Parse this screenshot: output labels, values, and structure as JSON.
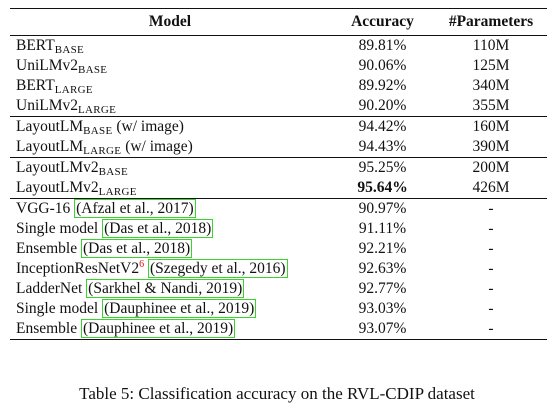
{
  "table": {
    "headers": {
      "model": "Model",
      "accuracy": "Accuracy",
      "params": "#Parameters"
    },
    "groups": [
      [
        {
          "name": "BERT",
          "sub": "BASE",
          "suffix": "",
          "accuracy": "89.81%",
          "params": "110M"
        },
        {
          "name": "UniLMv2",
          "sub": "BASE",
          "suffix": "",
          "accuracy": "90.06%",
          "params": "125M"
        },
        {
          "name": "BERT",
          "sub": "LARGE",
          "suffix": "",
          "accuracy": "89.92%",
          "params": "340M"
        },
        {
          "name": "UniLMv2",
          "sub": "LARGE",
          "suffix": "",
          "accuracy": "90.20%",
          "params": "355M"
        }
      ],
      [
        {
          "name": "LayoutLM",
          "sub": "BASE",
          "suffix": " (w/ image)",
          "accuracy": "94.42%",
          "params": "160M"
        },
        {
          "name": "LayoutLM",
          "sub": "LARGE",
          "suffix": " (w/ image)",
          "accuracy": "94.43%",
          "params": "390M"
        }
      ],
      [
        {
          "name": "LayoutLMv2",
          "sub": "BASE",
          "suffix": "",
          "accuracy": "95.25%",
          "params": "200M"
        },
        {
          "name": "LayoutLMv2",
          "sub": "LARGE",
          "suffix": "",
          "accuracy": "95.64%",
          "params": "426M",
          "bold": true
        }
      ],
      [
        {
          "name": "VGG-16 ",
          "cite": "(Afzal et al., 2017)",
          "accuracy": "90.97%",
          "params": "-"
        },
        {
          "name": "Single model ",
          "cite": "(Das et al., 2018)",
          "accuracy": "91.11%",
          "params": "-"
        },
        {
          "name": "Ensemble ",
          "cite": "(Das et al., 2018)",
          "accuracy": "92.21%",
          "params": "-"
        },
        {
          "name": "InceptionResNetV2",
          "footnote": "6",
          "cite": "(Szegedy et al., 2016)",
          "accuracy": "92.63%",
          "params": "-"
        },
        {
          "name": "LadderNet ",
          "cite": "(Sarkhel & Nandi, 2019)",
          "accuracy": "92.77%",
          "params": "-"
        },
        {
          "name": "Single model ",
          "cite": "(Dauphinee et al., 2019)",
          "accuracy": "93.03%",
          "params": "-"
        },
        {
          "name": "Ensemble ",
          "cite": "(Dauphinee et al., 2019)",
          "accuracy": "93.07%",
          "params": "-"
        }
      ]
    ]
  },
  "caption": "Table 5: Classification accuracy on the RVL-CDIP dataset"
}
